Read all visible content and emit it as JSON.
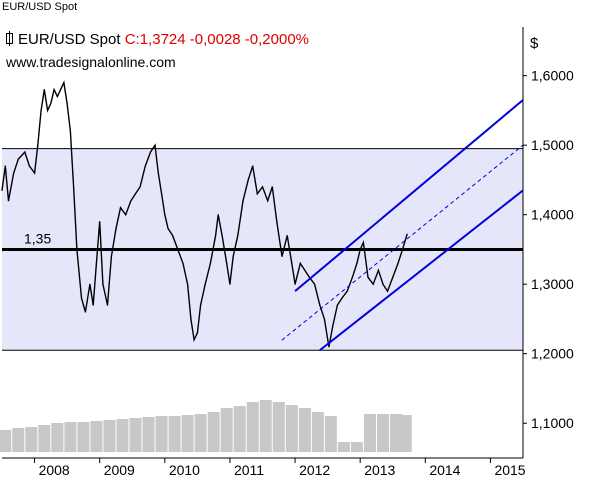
{
  "window_title": "EUR/USD Spot",
  "header": {
    "symbol": "EUR/USD Spot",
    "quote_text": "C:1,3724 -0,0028 -0,2000%",
    "website": "www.tradesignalonline.com"
  },
  "colors": {
    "band_fill": "#e6e6fa",
    "price_line": "#000000",
    "channel_line": "#0000dd",
    "volume_bar": "#c8c8c8",
    "quote_text": "#e00000"
  },
  "chart_data": {
    "type": "line",
    "title": "EUR/USD Spot",
    "ylabel": "$",
    "ylim": [
      1.05,
      1.67
    ],
    "xlim": [
      2007.5,
      2015.5
    ],
    "y_ticks": [
      1.1,
      1.2,
      1.3,
      1.4,
      1.5,
      1.6
    ],
    "y_tick_labels": [
      "1,1000",
      "1,2000",
      "1,3000",
      "1,4000",
      "1,5000",
      "1,6000"
    ],
    "x_ticks": [
      2008,
      2009,
      2010,
      2011,
      2012,
      2013,
      2014,
      2015
    ],
    "x_tick_labels": [
      "2008",
      "2009",
      "2010",
      "2011",
      "2012",
      "2013",
      "2014",
      "2015"
    ],
    "grid": false,
    "series": [
      {
        "x": [
          2007.5,
          2007.55,
          2007.6,
          2007.68,
          2007.75,
          2007.85,
          2007.92,
          2008.0,
          2008.05,
          2008.1,
          2008.15,
          2008.2,
          2008.25,
          2008.3,
          2008.35,
          2008.4,
          2008.45,
          2008.5,
          2008.55,
          2008.6,
          2008.65,
          2008.72,
          2008.78,
          2008.85,
          2008.9,
          2008.95,
          2009.0,
          2009.05,
          2009.12,
          2009.18,
          2009.25,
          2009.32,
          2009.4,
          2009.48,
          2009.55,
          2009.62,
          2009.7,
          2009.78,
          2009.85,
          2009.9,
          2009.95,
          2010.0,
          2010.05,
          2010.12,
          2010.2,
          2010.28,
          2010.35,
          2010.4,
          2010.45,
          2010.5,
          2010.55,
          2010.62,
          2010.7,
          2010.78,
          2010.82,
          2010.88,
          2010.95,
          2011.0,
          2011.05,
          2011.12,
          2011.2,
          2011.28,
          2011.35,
          2011.42,
          2011.5,
          2011.58,
          2011.65,
          2011.72,
          2011.8,
          2011.88,
          2011.95,
          2012.0,
          2012.08,
          2012.15,
          2012.22,
          2012.3,
          2012.38,
          2012.45,
          2012.52,
          2012.58,
          2012.65,
          2012.72,
          2012.8,
          2012.88,
          2012.95,
          2013.0,
          2013.05,
          2013.12,
          2013.2,
          2013.28,
          2013.35,
          2013.42,
          2013.5,
          2013.58,
          2013.65,
          2013.72
        ],
        "y": [
          1.435,
          1.47,
          1.42,
          1.46,
          1.48,
          1.49,
          1.47,
          1.46,
          1.5,
          1.55,
          1.58,
          1.55,
          1.56,
          1.58,
          1.57,
          1.58,
          1.59,
          1.56,
          1.52,
          1.44,
          1.35,
          1.28,
          1.26,
          1.3,
          1.27,
          1.33,
          1.39,
          1.3,
          1.27,
          1.34,
          1.38,
          1.41,
          1.4,
          1.42,
          1.43,
          1.44,
          1.47,
          1.49,
          1.5,
          1.46,
          1.43,
          1.4,
          1.38,
          1.37,
          1.35,
          1.33,
          1.3,
          1.25,
          1.22,
          1.23,
          1.27,
          1.3,
          1.33,
          1.37,
          1.4,
          1.37,
          1.33,
          1.3,
          1.34,
          1.37,
          1.42,
          1.45,
          1.47,
          1.43,
          1.44,
          1.42,
          1.44,
          1.39,
          1.34,
          1.37,
          1.33,
          1.3,
          1.33,
          1.32,
          1.31,
          1.3,
          1.27,
          1.25,
          1.21,
          1.24,
          1.27,
          1.28,
          1.29,
          1.31,
          1.33,
          1.35,
          1.36,
          1.31,
          1.3,
          1.32,
          1.3,
          1.29,
          1.31,
          1.33,
          1.35,
          1.372
        ]
      }
    ],
    "volume_bars": {
      "x": [
        2007.55,
        2007.75,
        2007.95,
        2008.15,
        2008.35,
        2008.55,
        2008.75,
        2008.95,
        2009.15,
        2009.35,
        2009.55,
        2009.75,
        2009.95,
        2010.15,
        2010.35,
        2010.55,
        2010.75,
        2010.95,
        2011.15,
        2011.35,
        2011.55,
        2011.75,
        2011.95,
        2012.15,
        2012.35,
        2012.55,
        2012.75,
        2012.95,
        2013.15,
        2013.35,
        2013.55,
        2013.7
      ],
      "heights": [
        0.22,
        0.24,
        0.25,
        0.27,
        0.29,
        0.3,
        0.3,
        0.31,
        0.32,
        0.33,
        0.34,
        0.35,
        0.36,
        0.36,
        0.37,
        0.38,
        0.4,
        0.44,
        0.46,
        0.5,
        0.52,
        0.5,
        0.47,
        0.44,
        0.4,
        0.36,
        0.1,
        0.1,
        0.38,
        0.38,
        0.38,
        0.37
      ]
    },
    "band": {
      "upper": 1.495,
      "lower": 1.205
    },
    "horizontal_line": {
      "value": 1.35,
      "label": "1,35"
    },
    "channel": {
      "start": {
        "x": 2012.38,
        "y": 1.205
      },
      "upper_start": {
        "x": 2012.0,
        "y": 1.29
      },
      "end_x": 2015.5,
      "lower_end_y": 1.435,
      "upper_end_y": 1.565,
      "mid_end_y": 1.5
    }
  }
}
